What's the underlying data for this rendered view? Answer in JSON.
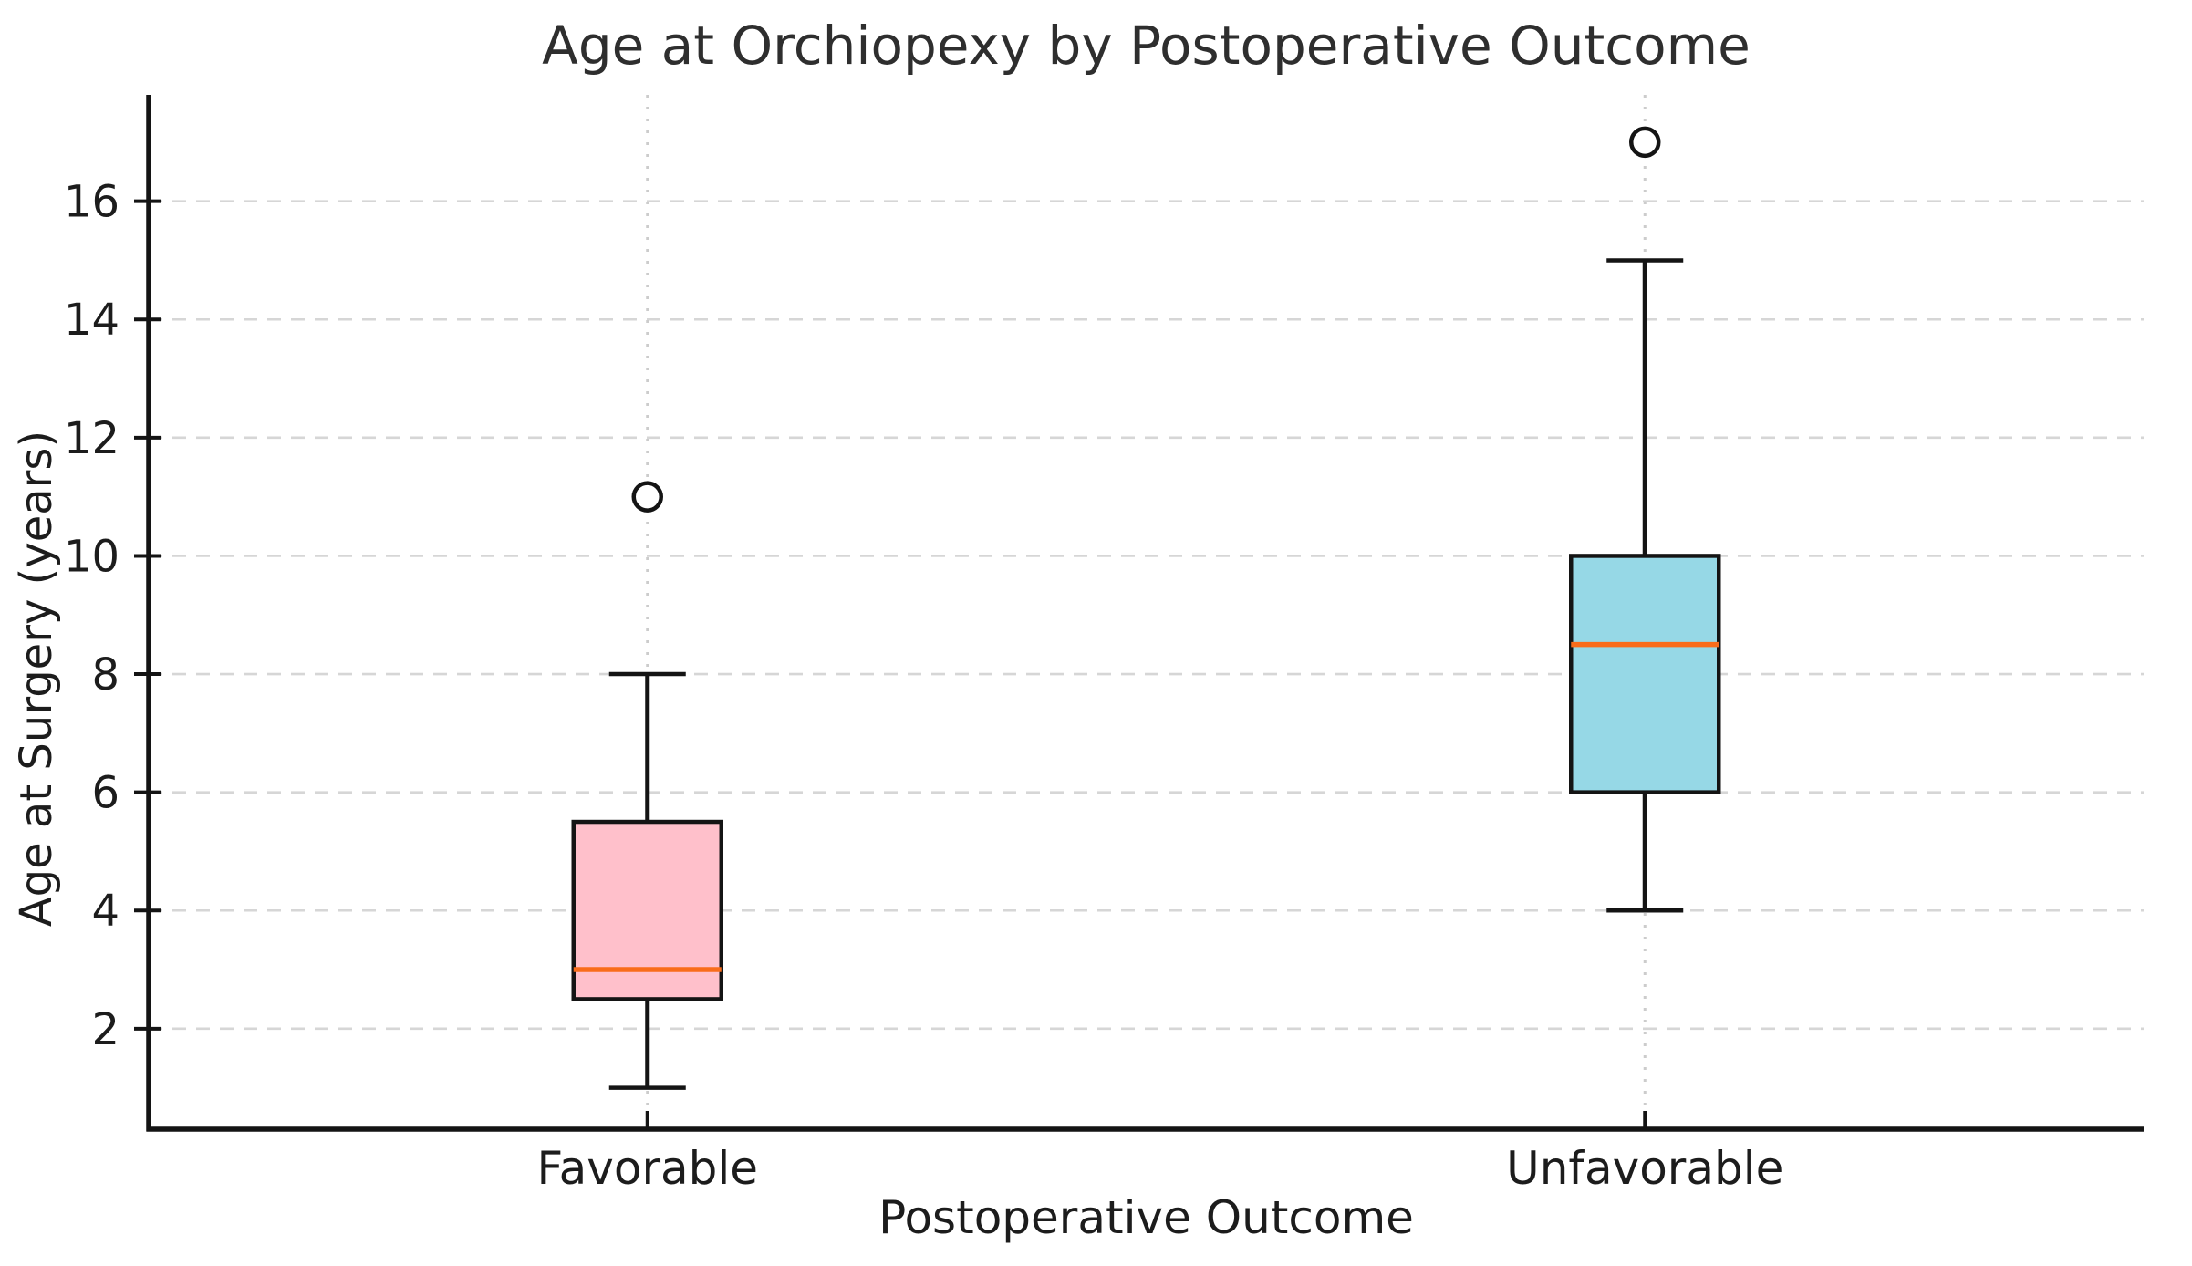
{
  "chart_data": {
    "type": "box",
    "title": "Age at Orchiopexy by Postoperative Outcome",
    "xlabel": "Postoperative Outcome",
    "ylabel": "Age at Surgery (years)",
    "categories": [
      "Favorable",
      "Unfavorable"
    ],
    "yticks": [
      2,
      4,
      6,
      8,
      10,
      12,
      14,
      16
    ],
    "ylim": [
      0.3,
      17.8
    ],
    "grid": {
      "horizontal": "dashed",
      "vertical": "dotted",
      "on": true
    },
    "legend": "none",
    "series": [
      {
        "name": "Favorable",
        "whisker_low": 1,
        "q1": 2.5,
        "median": 3,
        "q3": 5.5,
        "whisker_high": 8,
        "outliers": [
          11
        ],
        "fill_color": "#ffc0cb"
      },
      {
        "name": "Unfavorable",
        "whisker_low": 4,
        "q1": 6,
        "median": 8.5,
        "q3": 10,
        "whisker_high": 15,
        "outliers": [
          17
        ],
        "fill_color": "#96d8e6"
      }
    ],
    "colors": {
      "median_line": "#f96c1a",
      "box_edge": "#141414",
      "whisker": "#141414",
      "axis_spine": "#141414",
      "grid_line": "#d6d6d6",
      "vertical_grid_line": "#cccccc",
      "tick_label": "#1c1c1c",
      "outlier_fill": "#ffffff",
      "background": "#ffffff"
    }
  }
}
